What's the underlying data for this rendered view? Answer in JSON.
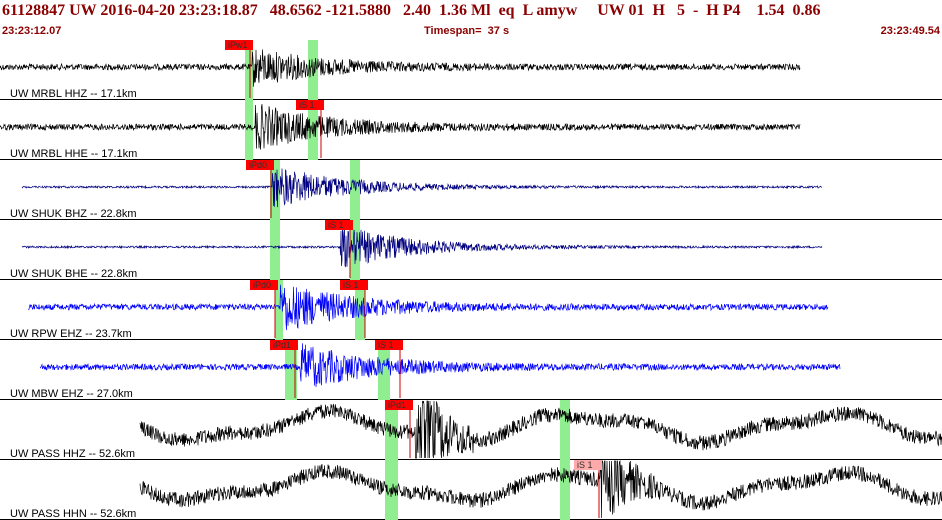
{
  "header": {
    "title": "61128847 UW 2016-04-20 23:23:18.87   48.6562 -121.5880   2.40  1.36 Ml  eq  L amyw     UW 01  H   5  -  H P4    1.54  0.86",
    "start_time": "23:23:12.07",
    "timespan": "Timespan=  37 s",
    "end_time": "23:23:49.54"
  },
  "colors": {
    "header_text": "#8b0000",
    "pick_box": "#ff0000",
    "pick_box_light": "#ffaaaa",
    "window_band": "#90ee90",
    "trace_black": "#000000",
    "trace_navy": "#000080",
    "trace_blue": "#0000ff"
  },
  "panels": [
    {
      "label": "UW MRBL HHZ -- 17.1km",
      "color": "#000000",
      "start": 0,
      "end": 800,
      "onset": 252,
      "amp": 3,
      "burst": 18,
      "type": "hf",
      "bands": [
        [
          245,
          253
        ],
        [
          308,
          318
        ]
      ],
      "picks": [
        {
          "label": "iPw1",
          "x": 225,
          "style": "solid"
        }
      ]
    },
    {
      "label": "UW MRBL HHE -- 17.1km",
      "color": "#000000",
      "start": 0,
      "end": 800,
      "onset": 255,
      "amp": 3,
      "burst": 22,
      "type": "hf",
      "bands": [
        [
          245,
          253
        ],
        [
          308,
          318
        ]
      ],
      "picks": [
        {
          "label": "iS 1",
          "x": 296,
          "style": "solid"
        }
      ]
    },
    {
      "label": "UW SHUK BHZ -- 22.8km",
      "color": "#000080",
      "start": 22,
      "end": 822,
      "onset": 272,
      "amp": 1,
      "burst": 22,
      "type": "hf",
      "bands": [
        [
          270,
          280
        ],
        [
          350,
          360
        ]
      ],
      "picks": [
        {
          "label": "iPd0",
          "x": 246,
          "style": "solid"
        }
      ]
    },
    {
      "label": "UW SHUK BHE -- 22.8km",
      "color": "#000080",
      "start": 22,
      "end": 822,
      "onset": 340,
      "amp": 1,
      "burst": 22,
      "type": "hf",
      "bands": [
        [
          270,
          280
        ],
        [
          350,
          360
        ]
      ],
      "picks": [
        {
          "label": "iS 1",
          "x": 325,
          "style": "solid"
        }
      ]
    },
    {
      "label": "UW RPW EHZ -- 23.7km",
      "color": "#0000ff",
      "start": 28,
      "end": 828,
      "onset": 280,
      "amp": 3,
      "burst": 24,
      "type": "hf",
      "bands": [
        [
          275,
          283
        ],
        [
          355,
          365
        ]
      ],
      "picks": [
        {
          "label": "iPd0",
          "x": 250,
          "style": "solid"
        },
        {
          "label": "iS 1",
          "x": 340,
          "style": "solid"
        }
      ]
    },
    {
      "label": "UW MBW EHZ -- 27.0km",
      "color": "#0000ff",
      "start": 40,
      "end": 840,
      "onset": 300,
      "amp": 3,
      "burst": 22,
      "type": "hf",
      "bands": [
        [
          285,
          297
        ],
        [
          378,
          390
        ]
      ],
      "picks": [
        {
          "label": "iPd1",
          "x": 270,
          "style": "solid"
        },
        {
          "label": "iS 1",
          "x": 375,
          "style": "solid"
        }
      ]
    },
    {
      "label": "UW PASS HHZ -- 52.6km",
      "color": "#000000",
      "start": 140,
      "end": 942,
      "onset": 415,
      "amp": 6,
      "burst": 8,
      "type": "lf",
      "bands": [
        [
          385,
          398
        ],
        [
          560,
          570
        ]
      ],
      "picks": [
        {
          "label": "iPd1",
          "x": 385,
          "style": "solid"
        }
      ]
    },
    {
      "label": "UW PASS HHN -- 52.6km",
      "color": "#000000",
      "start": 140,
      "end": 942,
      "onset": 600,
      "amp": 6,
      "burst": 6,
      "type": "lf",
      "bands": [
        [
          385,
          398
        ],
        [
          560,
          570
        ]
      ],
      "picks": [
        {
          "label": "iS 1",
          "x": 574,
          "style": "light"
        }
      ]
    }
  ]
}
